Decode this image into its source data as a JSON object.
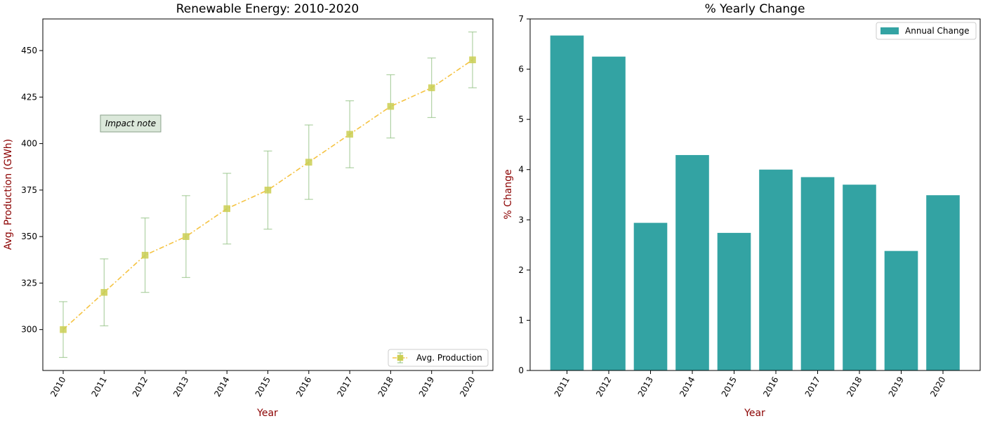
{
  "chart_data": [
    {
      "type": "line",
      "title": "Renewable Energy: 2010-2020",
      "xlabel": "Year",
      "ylabel": "Avg. Production (GWh)",
      "x": [
        "2010",
        "2011",
        "2012",
        "2013",
        "2014",
        "2015",
        "2016",
        "2017",
        "2018",
        "2019",
        "2020"
      ],
      "series": [
        {
          "name": "Avg. Production",
          "values": [
            300,
            320,
            340,
            350,
            365,
            375,
            390,
            405,
            420,
            430,
            445
          ],
          "error_low": [
            285,
            302,
            320,
            328,
            346,
            354,
            370,
            387,
            403,
            414,
            430
          ],
          "error_high": [
            315,
            338,
            360,
            372,
            384,
            396,
            410,
            423,
            437,
            446,
            460
          ],
          "line_color": "#f5c342",
          "marker_color": "#c9cf55",
          "error_color": "#8fbf7f",
          "marker": "square",
          "line_style": "dash-dot"
        }
      ],
      "ylim": [
        278,
        467
      ],
      "yticks": [
        300,
        325,
        350,
        375,
        400,
        425,
        450
      ],
      "annotation": "Impact note",
      "legend_position": "lower-right",
      "label_color": "#8b0000",
      "tick_rotation": 60
    },
    {
      "type": "bar",
      "title": "% Yearly Change",
      "xlabel": "Year",
      "ylabel": "% Change",
      "categories": [
        "2011",
        "2012",
        "2013",
        "2014",
        "2015",
        "2016",
        "2017",
        "2018",
        "2019",
        "2020"
      ],
      "series": [
        {
          "name": "Annual Change",
          "values": [
            6.67,
            6.25,
            2.94,
            4.29,
            2.74,
            4.0,
            3.85,
            3.7,
            2.38,
            3.49
          ],
          "color": "#33a3a3"
        }
      ],
      "ylim": [
        0,
        7
      ],
      "yticks": [
        0,
        1,
        2,
        3,
        4,
        5,
        6,
        7
      ],
      "legend_position": "upper-right",
      "label_color": "#8b0000",
      "tick_rotation": 60
    }
  ]
}
